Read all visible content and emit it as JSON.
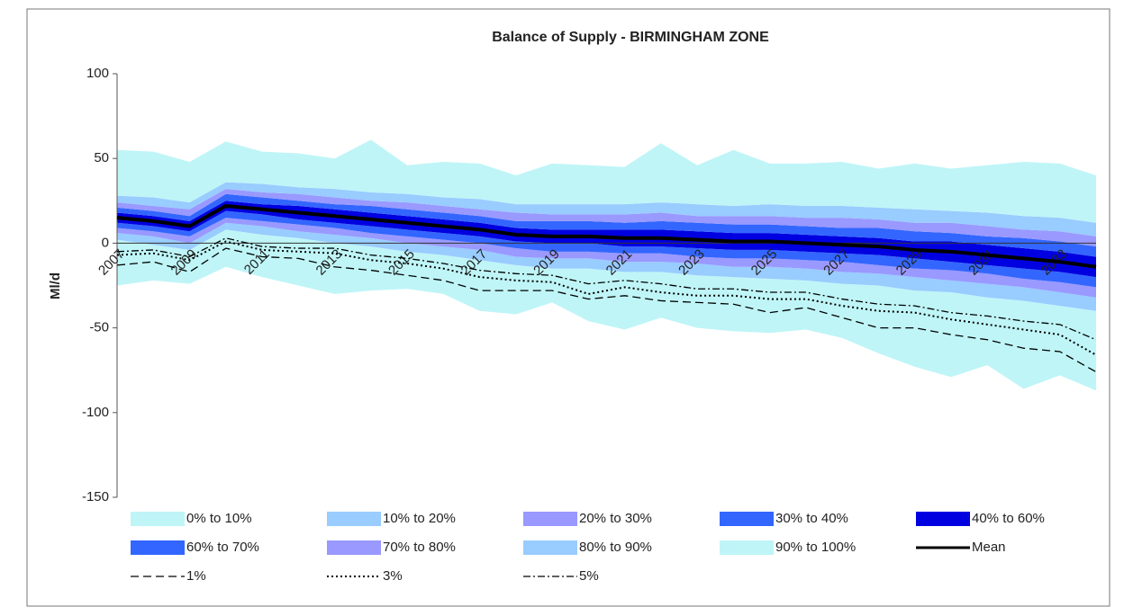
{
  "chart_data": {
    "type": "fan",
    "title": "Balance of Supply - BIRMINGHAM ZONE",
    "y_label": "Ml/d",
    "categories": [
      "2007",
      null,
      "2009",
      null,
      "2011",
      null,
      "2013",
      null,
      "2015",
      null,
      "2017",
      null,
      "2019",
      null,
      "2021",
      null,
      "2023",
      null,
      "2025",
      null,
      "2027",
      null,
      "2029",
      null,
      "2031",
      null,
      "2033",
      null
    ],
    "ylim": [
      -150,
      100
    ],
    "yticks": [
      -150,
      -100,
      -50,
      0,
      50,
      100
    ],
    "lower_bound": [
      -25,
      -22,
      -24,
      -14,
      -20,
      -25,
      -30,
      -28,
      -27,
      -30,
      -40,
      -42,
      -35,
      -46,
      -51,
      -44,
      -50,
      -52,
      -53,
      -51,
      -56,
      -65,
      -73,
      -79,
      -72,
      -86,
      -78,
      -87
    ],
    "series": [
      {
        "name": "0% to 10%",
        "kind": "band",
        "color": "#bff5f7",
        "values": [
          2,
          -1,
          -4,
          8,
          5,
          3,
          0,
          -2,
          -5,
          -7,
          -10,
          -13,
          -15,
          -15,
          -17,
          -17,
          -19,
          -20,
          -21,
          -22,
          -24,
          -25,
          -28,
          -29,
          -32,
          -34,
          -37,
          -40
        ]
      },
      {
        "name": "10% to 20%",
        "kind": "band",
        "color": "#99ccff",
        "values": [
          6,
          4,
          0,
          12,
          10,
          7,
          5,
          3,
          0,
          -2,
          -4,
          -8,
          -9,
          -9,
          -11,
          -11,
          -12,
          -14,
          -14,
          -15,
          -17,
          -18,
          -20,
          -22,
          -24,
          -26,
          -29,
          -32
        ]
      },
      {
        "name": "20% to 30%",
        "kind": "band",
        "color": "#9999ff",
        "values": [
          9,
          7,
          4,
          15,
          13,
          11,
          9,
          6,
          4,
          2,
          0,
          -3,
          -5,
          -5,
          -6,
          -6,
          -8,
          -9,
          -9,
          -10,
          -11,
          -13,
          -15,
          -16,
          -18,
          -21,
          -23,
          -26
        ]
      },
      {
        "name": "30% to 40%",
        "kind": "band",
        "color": "#3366ff",
        "values": [
          12,
          10,
          7,
          19,
          17,
          14,
          12,
          10,
          8,
          6,
          4,
          1,
          0,
          0,
          -2,
          -2,
          -3,
          -4,
          -4,
          -5,
          -6,
          -7,
          -9,
          -11,
          -13,
          -15,
          -17,
          -20
        ]
      },
      {
        "name": "40% to 60%",
        "kind": "band",
        "color": "#0000e0",
        "values": [
          18,
          16,
          13,
          25,
          23,
          22,
          20,
          18,
          16,
          14,
          12,
          9,
          8,
          8,
          8,
          8,
          7,
          6,
          6,
          5,
          4,
          3,
          1,
          1,
          -1,
          -3,
          -5,
          -8
        ]
      },
      {
        "name": "60% to 70%",
        "kind": "band",
        "color": "#3366ff",
        "values": [
          21,
          19,
          16,
          29,
          27,
          25,
          23,
          22,
          20,
          18,
          16,
          13,
          13,
          13,
          12,
          13,
          12,
          11,
          11,
          10,
          9,
          9,
          7,
          6,
          4,
          3,
          1,
          -2
        ]
      },
      {
        "name": "70% to 80%",
        "kind": "band",
        "color": "#9999ff",
        "values": [
          24,
          22,
          20,
          32,
          30,
          29,
          27,
          25,
          24,
          22,
          20,
          18,
          17,
          17,
          17,
          18,
          16,
          16,
          16,
          15,
          15,
          14,
          12,
          12,
          10,
          8,
          7,
          4
        ]
      },
      {
        "name": "80% to 90%",
        "kind": "band",
        "color": "#99ccff",
        "values": [
          28,
          27,
          24,
          36,
          35,
          33,
          32,
          30,
          29,
          27,
          26,
          23,
          23,
          23,
          23,
          24,
          23,
          22,
          23,
          22,
          22,
          21,
          20,
          19,
          18,
          16,
          15,
          12
        ]
      },
      {
        "name": "90% to 100%",
        "kind": "band",
        "color": "#bff5f7",
        "values": [
          55,
          54,
          48,
          60,
          54,
          53,
          50,
          61,
          46,
          48,
          47,
          40,
          47,
          46,
          45,
          59,
          46,
          55,
          47,
          47,
          48,
          44,
          47,
          44,
          46,
          48,
          47,
          40
        ]
      },
      {
        "name": "Mean",
        "kind": "line",
        "color": "#000000",
        "dash": "solid",
        "line_width": 4,
        "values": [
          15,
          13,
          10,
          22,
          20,
          18,
          16,
          14,
          12,
          10,
          8,
          5,
          4,
          4,
          3,
          3,
          2,
          1,
          1,
          0,
          -1,
          -2,
          -4,
          -5,
          -7,
          -9,
          -11,
          -14
        ]
      },
      {
        "name": "1%",
        "kind": "line",
        "color": "#000000",
        "dash": "dashed",
        "line_width": 1.3,
        "values": [
          -13,
          -11,
          -17,
          -3,
          -8,
          -9,
          -14,
          -16,
          -19,
          -22,
          -28,
          -28,
          -28,
          -33,
          -31,
          -34,
          -35,
          -36,
          -41,
          -38,
          -44,
          -50,
          -50,
          -54,
          -57,
          -62,
          -64,
          -76
        ]
      },
      {
        "name": "3%",
        "kind": "line",
        "color": "#000000",
        "dash": "dotted",
        "line_width": 2,
        "values": [
          -7,
          -6,
          -10,
          1,
          -4,
          -5,
          -6,
          -10,
          -12,
          -15,
          -20,
          -22,
          -23,
          -30,
          -26,
          -29,
          -31,
          -31,
          -33,
          -33,
          -37,
          -40,
          -41,
          -45,
          -48,
          -51,
          -54,
          -66
        ]
      },
      {
        "name": "5%",
        "kind": "line",
        "color": "#000000",
        "dash": "dashdot",
        "line_width": 1.3,
        "values": [
          -5,
          -4,
          -8,
          3,
          -2,
          -3,
          -3,
          -7,
          -9,
          -12,
          -16,
          -18,
          -19,
          -24,
          -22,
          -24,
          -27,
          -27,
          -29,
          -29,
          -33,
          -36,
          -37,
          -41,
          -43,
          -46,
          -48,
          -57
        ]
      }
    ]
  }
}
